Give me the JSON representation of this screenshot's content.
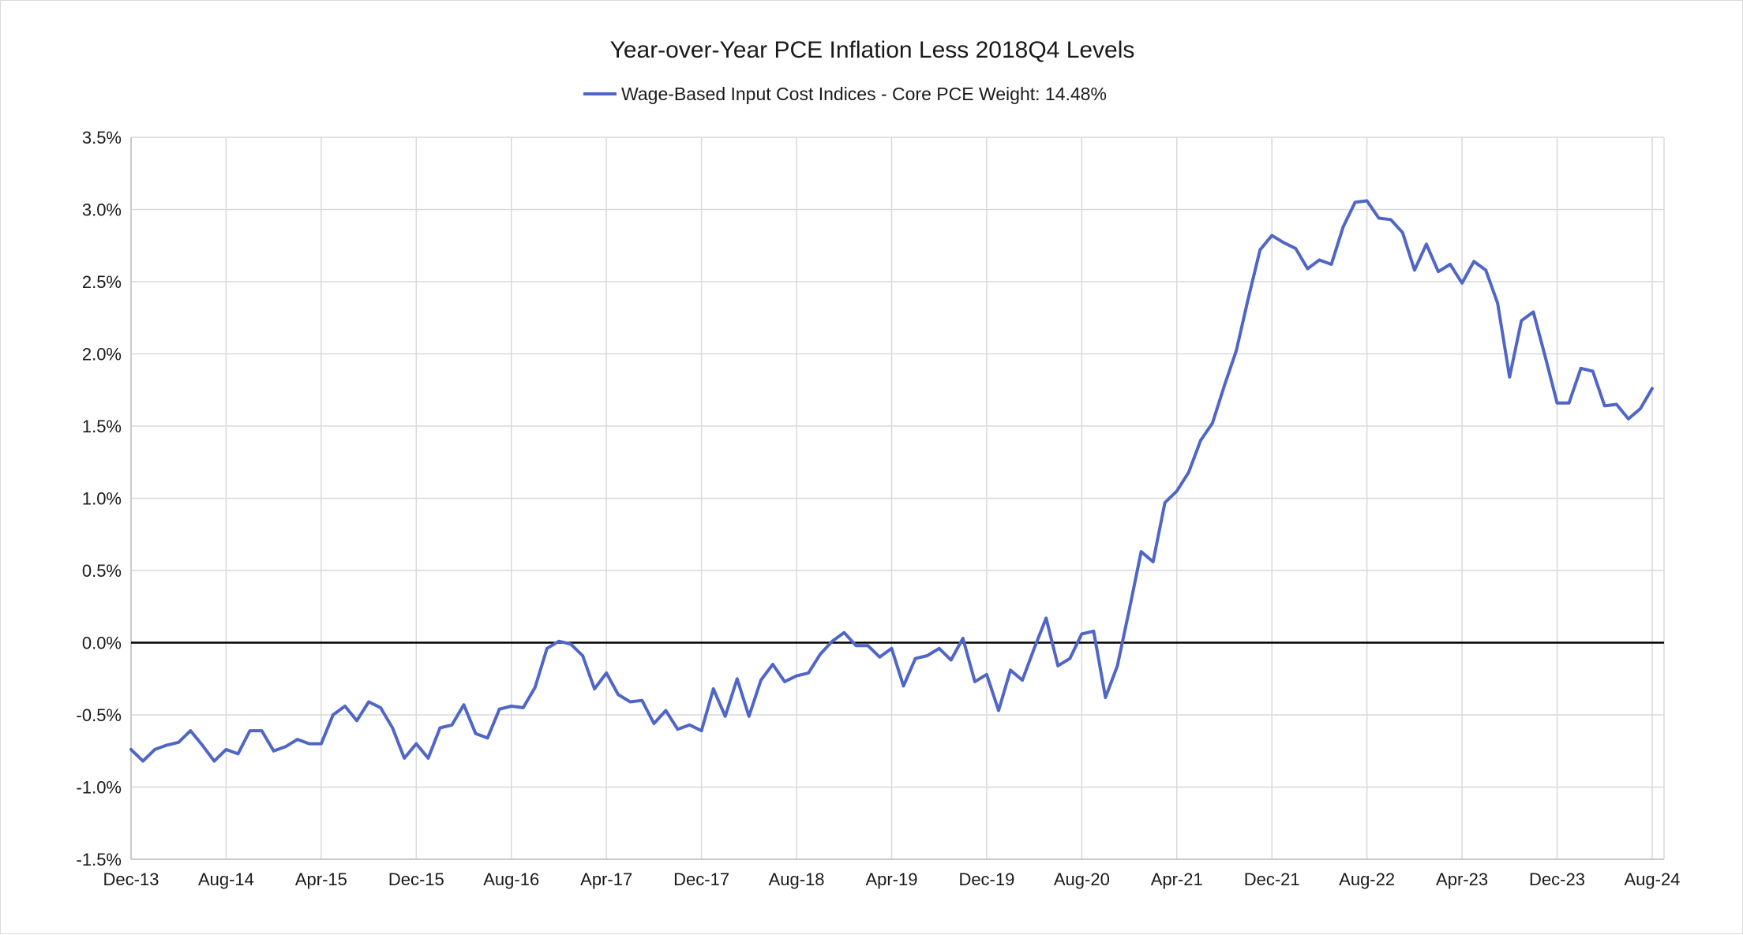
{
  "chart_data": {
    "type": "line",
    "title": "Year-over-Year PCE Inflation Less 2018Q4 Levels",
    "legend_position": "top",
    "grid": true,
    "ylim": [
      -1.5,
      3.5
    ],
    "y_ticks": [
      "-1.5%",
      "-1.0%",
      "-0.5%",
      "0.0%",
      "0.5%",
      "1.0%",
      "1.5%",
      "2.0%",
      "2.5%",
      "3.0%",
      "3.5%"
    ],
    "x_ticks": [
      "Dec-13",
      "Aug-14",
      "Apr-15",
      "Dec-15",
      "Aug-16",
      "Apr-17",
      "Dec-17",
      "Aug-18",
      "Apr-19",
      "Dec-19",
      "Aug-20",
      "Apr-21",
      "Dec-21",
      "Aug-22",
      "Apr-23",
      "Dec-23",
      "Aug-24"
    ],
    "series": [
      {
        "name": "Wage-Based Input Cost Indices - Core PCE Weight: 14.48%",
        "color": "#4f66c6",
        "start": "Dec-13",
        "frequency": "monthly",
        "values": [
          -0.74,
          -0.82,
          -0.74,
          -0.71,
          -0.69,
          -0.61,
          -0.71,
          -0.82,
          -0.74,
          -0.77,
          -0.61,
          -0.61,
          -0.75,
          -0.72,
          -0.67,
          -0.7,
          -0.7,
          -0.5,
          -0.44,
          -0.54,
          -0.41,
          -0.45,
          -0.59,
          -0.8,
          -0.7,
          -0.8,
          -0.59,
          -0.57,
          -0.43,
          -0.63,
          -0.66,
          -0.46,
          -0.44,
          -0.45,
          -0.31,
          -0.04,
          0.01,
          -0.01,
          -0.09,
          -0.32,
          -0.21,
          -0.36,
          -0.41,
          -0.4,
          -0.56,
          -0.47,
          -0.6,
          -0.57,
          -0.61,
          -0.32,
          -0.51,
          -0.25,
          -0.51,
          -0.26,
          -0.15,
          -0.27,
          -0.23,
          -0.21,
          -0.08,
          0.01,
          0.07,
          -0.02,
          -0.02,
          -0.1,
          -0.04,
          -0.3,
          -0.11,
          -0.09,
          -0.04,
          -0.12,
          0.03,
          -0.27,
          -0.22,
          -0.47,
          -0.19,
          -0.26,
          -0.04,
          0.17,
          -0.16,
          -0.11,
          0.06,
          0.08,
          -0.38,
          -0.16,
          0.23,
          0.63,
          0.56,
          0.97,
          1.05,
          1.18,
          1.4,
          1.52,
          1.78,
          2.02,
          2.38,
          2.72,
          2.82,
          2.77,
          2.73,
          2.59,
          2.65,
          2.62,
          2.88,
          3.05,
          3.06,
          2.94,
          2.93,
          2.84,
          2.58,
          2.76,
          2.57,
          2.62,
          2.49,
          2.64,
          2.58,
          2.35,
          1.84,
          2.23,
          2.29,
          1.98,
          1.66,
          1.66,
          1.9,
          1.88,
          1.64,
          1.65,
          1.55,
          1.62,
          1.76
        ]
      }
    ]
  }
}
